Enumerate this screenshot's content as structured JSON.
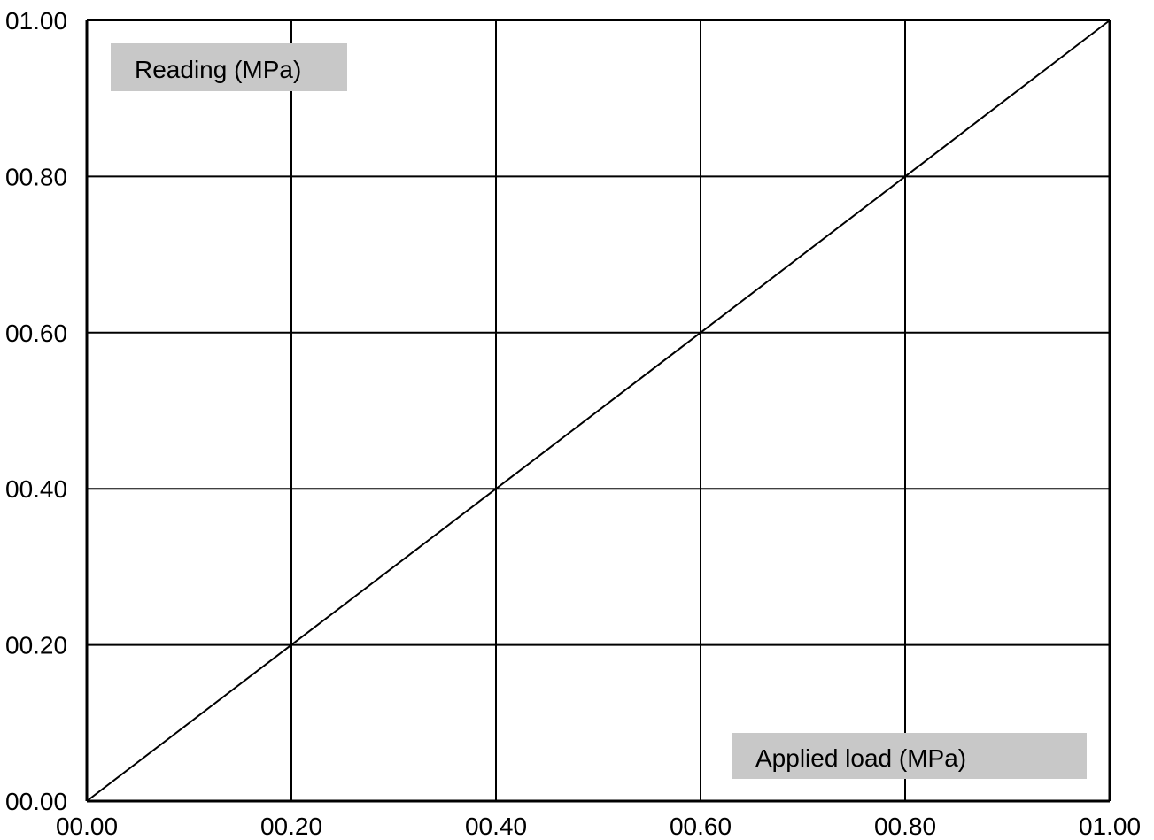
{
  "chart_data": {
    "type": "line",
    "title": "",
    "xlabel": "Applied load (MPa)",
    "ylabel": "Reading (MPa)",
    "xlim": [
      0,
      1
    ],
    "ylim": [
      0,
      1
    ],
    "grid": true,
    "x_tick_labels": [
      "00.00",
      "00.20",
      "00.40",
      "00.60",
      "00.80",
      "01.00"
    ],
    "y_tick_labels": [
      "00.00",
      "00.20",
      "00.40",
      "00.60",
      "00.80",
      "01.00"
    ],
    "x_ticks": [
      0,
      0.2,
      0.4,
      0.6,
      0.8,
      1.0
    ],
    "y_ticks": [
      0,
      0.2,
      0.4,
      0.6,
      0.8,
      1.0
    ],
    "series": [
      {
        "x": [
          0,
          0.2,
          0.4,
          0.6,
          0.8,
          1.0
        ],
        "values": [
          0,
          0.2,
          0.4,
          0.6,
          0.8,
          1.0
        ],
        "color": "#000000"
      }
    ],
    "label_box_color": "#c8c8c8"
  }
}
